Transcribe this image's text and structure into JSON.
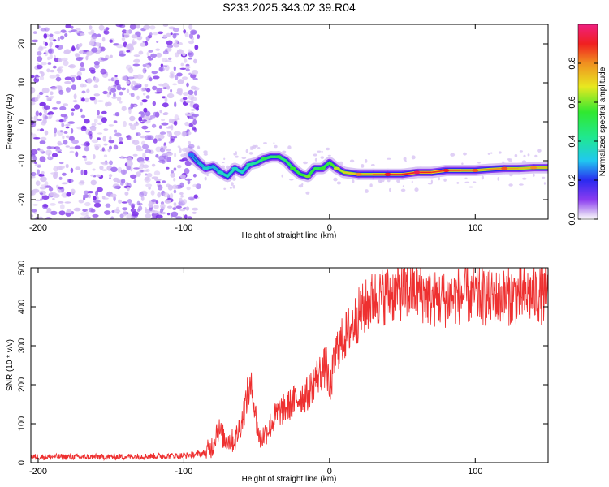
{
  "figure_title": "S233.2025.343.02.39.R04",
  "chart_data": [
    {
      "type": "heatmap",
      "panel": "spectrogram",
      "xlabel": "Height of straight line (km)",
      "ylabel": "Frequency (Hz)",
      "xlim": [
        -205,
        150
      ],
      "ylim": [
        -25,
        25
      ],
      "xticks": [
        -200,
        -100,
        0,
        100
      ],
      "yticks": [
        -20,
        -10,
        0,
        10,
        20
      ],
      "noise_region_x": [
        -205,
        -93
      ],
      "signal_track": {
        "x": [
          -95,
          -90,
          -85,
          -80,
          -75,
          -70,
          -65,
          -60,
          -55,
          -50,
          -45,
          -40,
          -35,
          -30,
          -25,
          -20,
          -15,
          -10,
          -5,
          0,
          5,
          10,
          20,
          30,
          40,
          50,
          60,
          70,
          80,
          90,
          100,
          110,
          120,
          130,
          140,
          150
        ],
        "y": [
          -8.5,
          -10.5,
          -12,
          -11.5,
          -13,
          -14,
          -12,
          -13,
          -11,
          -10.5,
          -9.5,
          -9,
          -9,
          -10,
          -12,
          -13.5,
          -14,
          -12,
          -12,
          -10.5,
          -12,
          -13,
          -13.5,
          -13.5,
          -13.5,
          -13.5,
          -13,
          -13,
          -12.5,
          -12.5,
          -12.5,
          -12.2,
          -12,
          -12,
          -11.8,
          -11.8
        ],
        "amplitude": [
          0.2,
          0.25,
          0.3,
          0.25,
          0.3,
          0.35,
          0.3,
          0.3,
          0.35,
          0.4,
          0.45,
          0.45,
          0.45,
          0.45,
          0.5,
          0.55,
          0.55,
          0.5,
          0.5,
          0.55,
          0.6,
          0.7,
          0.75,
          0.8,
          0.85,
          0.9,
          0.9,
          0.9,
          0.85,
          0.85,
          0.8,
          0.8,
          0.8,
          0.75,
          0.75,
          0.75
        ]
      },
      "colorbar": {
        "label": "Normalized spectral amplitude",
        "range": [
          0,
          1
        ],
        "ticks": [
          "0.0",
          "0.2",
          "0.4",
          "0.6",
          "0.8"
        ],
        "tick_values": [
          0,
          0.2,
          0.4,
          0.6,
          0.8
        ]
      }
    },
    {
      "type": "line",
      "panel": "snr",
      "xlabel": "Height of straight line (km)",
      "ylabel": "SNR (10 * v/v)",
      "xlim": [
        -205,
        150
      ],
      "ylim": [
        0,
        500
      ],
      "xticks": [
        -200,
        -100,
        0,
        100
      ],
      "yticks": [
        0,
        100,
        200,
        300,
        400,
        500
      ],
      "series": [
        {
          "name": "SNR",
          "color": "#ee3030",
          "envelope_x": [
            -205,
            -150,
            -100,
            -85,
            -80,
            -77,
            -72,
            -65,
            -60,
            -56,
            -53,
            -50,
            -48,
            -45,
            -40,
            -35,
            -30,
            -25,
            -20,
            -15,
            -10,
            -5,
            -2,
            0,
            2,
            5,
            10,
            15,
            20,
            25,
            30,
            40,
            50,
            60,
            70,
            80,
            90,
            100,
            110,
            120,
            130,
            140,
            150
          ],
          "envelope_y": [
            15,
            15,
            18,
            25,
            45,
            90,
            60,
            55,
            110,
            180,
            190,
            100,
            60,
            70,
            100,
            130,
            140,
            155,
            170,
            175,
            215,
            235,
            250,
            170,
            230,
            290,
            320,
            350,
            380,
            400,
            420,
            430,
            440,
            440,
            420,
            420,
            430,
            430,
            420,
            425,
            430,
            430,
            430
          ],
          "noise_amplitude": 25
        }
      ]
    }
  ],
  "colors": {
    "axis": "#000000",
    "snr_line": "#ee3030",
    "noise_dot": "#8a3cf0"
  }
}
